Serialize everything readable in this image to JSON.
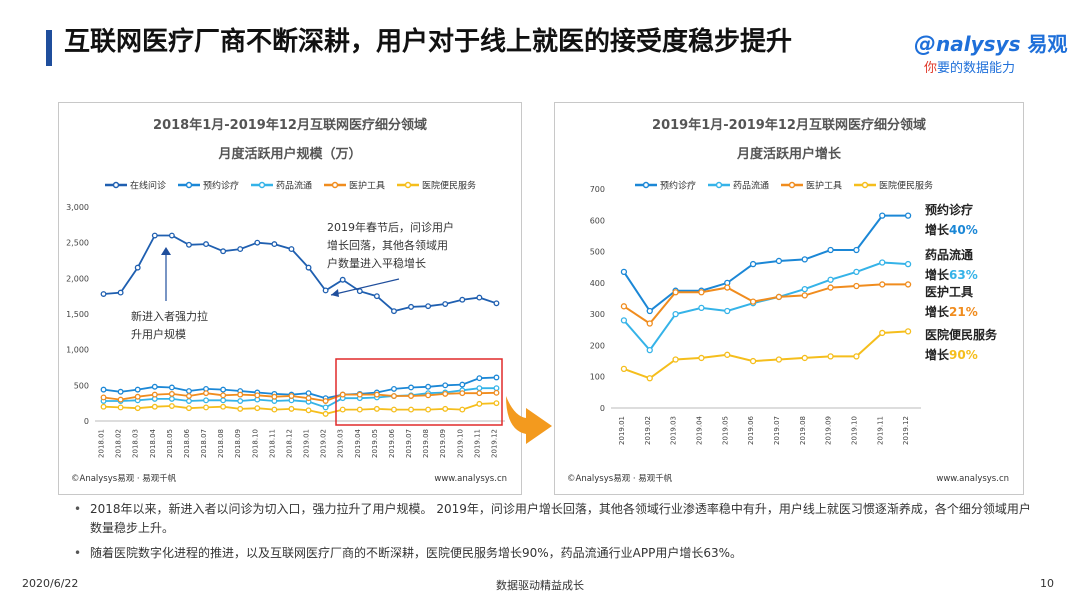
{
  "page": {
    "title": "互联网医疗厂商不断深耕，用户对于线上就医的接受度稳步提升",
    "logo": {
      "brand": "nalysys",
      "brand_cn": "易观",
      "slogan_lead": "你",
      "slogan_rest": "要的数据能力"
    },
    "bullets": [
      "2018年以来，新进入者以问诊为切入口，强力拉升了用户规模。 2019年，问诊用户增长回落，其他各领域行业渗透率稳中有升，用户线上就医习惯逐渐养成，各个细分领域用户数量稳步上升。",
      "随着医院数字化进程的推进，以及互联网医疗厂商的不断深耕，医院便民服务增长90%，药品流通行业APP用户增长63%。"
    ],
    "footer": {
      "date": "2020/6/22",
      "slogan": "数据驱动精益成长",
      "page_number": "10"
    },
    "colors": {
      "accent": "#1f4e9c",
      "highlight_box": "#e02a2a",
      "arrow": "#f39a1e"
    }
  },
  "chart_data": [
    {
      "type": "line",
      "title": "2018年1月-2019年12月互联网医疗细分领域",
      "subtitle": "月度活跃用户规模（万）",
      "xlabel": "",
      "ylabel": "",
      "ylim": [
        0,
        3000
      ],
      "yticks": [
        "0",
        "500",
        "1,000",
        "1,500",
        "2,000",
        "2,500",
        "3,000"
      ],
      "grid": false,
      "legend": "top",
      "categories": [
        "2018.01",
        "2018.02",
        "2018.03",
        "2018.04",
        "2018.05",
        "2018.06",
        "2018.07",
        "2018.08",
        "2018.09",
        "2018.10",
        "2018.11",
        "2018.12",
        "2019.01",
        "2019.02",
        "2019.03",
        "2019.04",
        "2019.05",
        "2019.06",
        "2019.07",
        "2019.08",
        "2019.09",
        "2019.10",
        "2019.11",
        "2019.12"
      ],
      "series": [
        {
          "name": "在线问诊",
          "color": "#1f5fb0",
          "values": [
            1780,
            1800,
            2150,
            2600,
            2600,
            2470,
            2480,
            2380,
            2410,
            2500,
            2480,
            2410,
            2150,
            1830,
            1980,
            1820,
            1750,
            1540,
            1600,
            1610,
            1640,
            1700,
            1730,
            1650
          ]
        },
        {
          "name": "预约诊疗",
          "color": "#1b87d6",
          "values": [
            440,
            410,
            440,
            480,
            470,
            420,
            450,
            440,
            420,
            400,
            380,
            370,
            390,
            320,
            370,
            380,
            400,
            450,
            470,
            480,
            500,
            510,
            600,
            610
          ]
        },
        {
          "name": "药品流通",
          "color": "#35b3e8",
          "values": [
            280,
            280,
            290,
            310,
            310,
            280,
            290,
            290,
            280,
            300,
            280,
            290,
            270,
            190,
            320,
            320,
            330,
            350,
            360,
            390,
            400,
            430,
            460,
            460
          ]
        },
        {
          "name": "医护工具",
          "color": "#f08c1e",
          "values": [
            330,
            300,
            340,
            370,
            380,
            350,
            390,
            360,
            370,
            360,
            340,
            350,
            320,
            280,
            370,
            370,
            370,
            350,
            350,
            360,
            380,
            390,
            390,
            395
          ]
        },
        {
          "name": "医院便民服务",
          "color": "#f5be1c",
          "values": [
            200,
            190,
            180,
            200,
            210,
            180,
            190,
            200,
            170,
            180,
            160,
            170,
            150,
            100,
            160,
            160,
            170,
            160,
            160,
            160,
            170,
            160,
            240,
            250
          ]
        }
      ],
      "annotations": [
        {
          "text": "2019年春节后，问诊用户增长回落，其他各领域用户数量进入平稳增长",
          "lines": [
            "2019年春节后，问诊用户",
            "增长回落，其他各领域用",
            "户数量进入平稳增长"
          ]
        },
        {
          "text": "新进入者强力拉升用户规模",
          "lines": [
            "新进入者强力拉",
            "升用户规模"
          ]
        }
      ],
      "source": "©Analysys易观 · 易观千帆",
      "website": "www.analysys.cn"
    },
    {
      "type": "line",
      "title": "2019年1月-2019年12月互联网医疗细分领域",
      "subtitle": "月度活跃用户增长",
      "xlabel": "",
      "ylabel": "",
      "ylim": [
        0,
        700
      ],
      "yticks": [
        "0",
        "100",
        "200",
        "300",
        "400",
        "500",
        "600",
        "700"
      ],
      "grid": false,
      "legend": "top",
      "categories": [
        "2019.01",
        "2019.02",
        "2019.03",
        "2019.04",
        "2019.05",
        "2019.06",
        "2019.07",
        "2019.08",
        "2019.09",
        "2019.10",
        "2019.11",
        "2019.12"
      ],
      "series": [
        {
          "name": "预约诊疗",
          "color": "#1b87d6",
          "values": [
            435,
            310,
            375,
            375,
            400,
            460,
            470,
            475,
            505,
            505,
            615,
            615
          ]
        },
        {
          "name": "药品流通",
          "color": "#35b3e8",
          "values": [
            280,
            185,
            300,
            320,
            310,
            335,
            355,
            380,
            410,
            435,
            465,
            460
          ]
        },
        {
          "name": "医护工具",
          "color": "#f08c1e",
          "values": [
            325,
            270,
            370,
            370,
            385,
            340,
            355,
            360,
            385,
            390,
            395,
            395
          ]
        },
        {
          "name": "医院便民服务",
          "color": "#f5be1c",
          "values": [
            125,
            95,
            155,
            160,
            170,
            150,
            155,
            160,
            165,
            165,
            240,
            245
          ]
        }
      ],
      "growth_labels": [
        {
          "name": "预约诊疗",
          "prefix": "增长",
          "value": "40%"
        },
        {
          "name": "药品流通",
          "prefix": "增长",
          "value": "63%"
        },
        {
          "name": "医护工具",
          "prefix": "增长",
          "value": "21%"
        },
        {
          "name": "医院便民服务",
          "prefix": "增长",
          "value": "90%"
        }
      ],
      "source": "©Analysys易观 · 易观千帆",
      "website": "www.analysys.cn"
    }
  ]
}
